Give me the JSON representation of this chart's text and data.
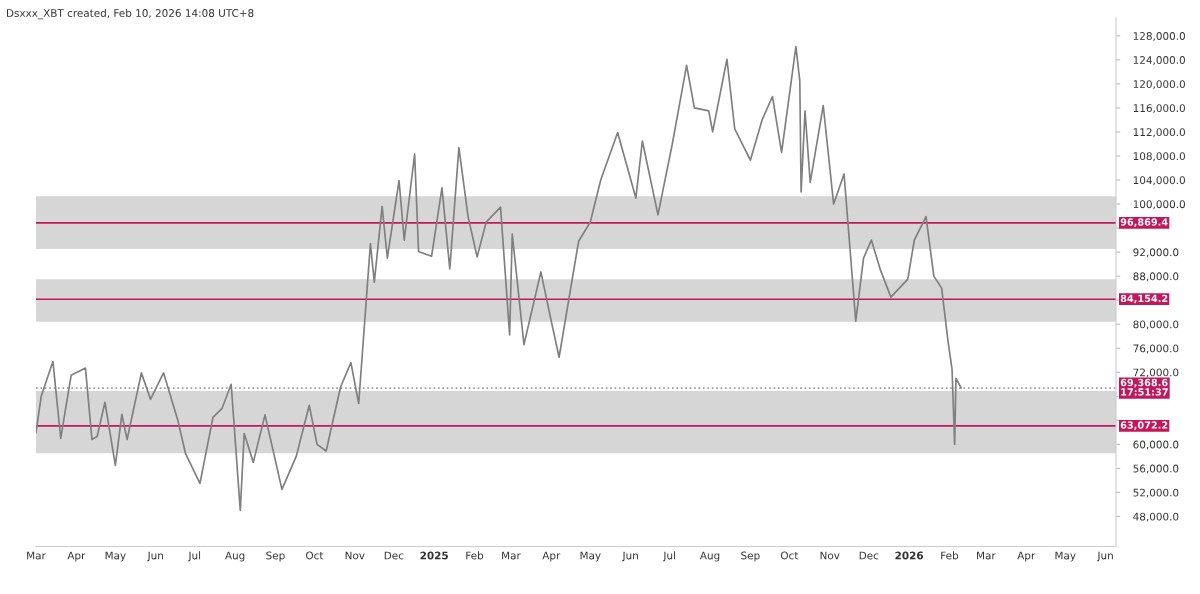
{
  "chart_data": {
    "type": "line",
    "title": "Dsxxx_XBT created, Feb 10, 2026 14:08 UTC+8",
    "series": [
      {
        "color": "#7f7f7f",
        "x": [
          "2024-03-01",
          "2024-03-05",
          "2024-03-14",
          "2024-03-20",
          "2024-03-28",
          "2024-04-08",
          "2024-04-13",
          "2024-04-17",
          "2024-04-23",
          "2024-05-01",
          "2024-05-06",
          "2024-05-10",
          "2024-05-21",
          "2024-05-28",
          "2024-06-07",
          "2024-06-18",
          "2024-06-24",
          "2024-07-05",
          "2024-07-15",
          "2024-07-22",
          "2024-07-29",
          "2024-08-05",
          "2024-08-08",
          "2024-08-15",
          "2024-08-24",
          "2024-09-06",
          "2024-09-17",
          "2024-09-27",
          "2024-10-03",
          "2024-10-10",
          "2024-10-21",
          "2024-10-29",
          "2024-11-04",
          "2024-11-13",
          "2024-11-16",
          "2024-11-22",
          "2024-11-26",
          "2024-12-05",
          "2024-12-09",
          "2024-12-17",
          "2024-12-20",
          "2024-12-30",
          "2025-01-07",
          "2025-01-13",
          "2025-01-20",
          "2025-01-27",
          "2025-02-03",
          "2025-02-10",
          "2025-02-21",
          "2025-02-28",
          "2025-03-02",
          "2025-03-11",
          "2025-03-24",
          "2025-03-31",
          "2025-04-07",
          "2025-04-22",
          "2025-05-01",
          "2025-05-09",
          "2025-05-22",
          "2025-06-05",
          "2025-06-10",
          "2025-06-22",
          "2025-07-03",
          "2025-07-14",
          "2025-07-20",
          "2025-07-31",
          "2025-08-03",
          "2025-08-14",
          "2025-08-20",
          "2025-09-01",
          "2025-09-10",
          "2025-09-18",
          "2025-09-25",
          "2025-10-06",
          "2025-10-09",
          "2025-10-10",
          "2025-10-13",
          "2025-10-17",
          "2025-10-27",
          "2025-11-04",
          "2025-11-12",
          "2025-11-21",
          "2025-11-27",
          "2025-12-03",
          "2025-12-10",
          "2025-12-18",
          "2025-12-31",
          "2026-01-05",
          "2026-01-14",
          "2026-01-20",
          "2026-01-26",
          "2026-01-31",
          "2026-02-03",
          "2026-02-05",
          "2026-02-06",
          "2026-02-10"
        ],
        "values": [
          62000,
          68000,
          73800,
          61000,
          71500,
          72700,
          60800,
          61300,
          67000,
          56500,
          65000,
          60800,
          71900,
          67500,
          71900,
          64000,
          58400,
          53500,
          64500,
          66000,
          70000,
          49000,
          61800,
          57000,
          64900,
          52500,
          58000,
          66500,
          60000,
          58900,
          69500,
          73600,
          66800,
          93400,
          87000,
          99600,
          91000,
          103900,
          94000,
          108300,
          92100,
          91300,
          102700,
          89200,
          109400,
          98000,
          91200,
          97000,
          99500,
          78200,
          95000,
          76600,
          88700,
          81500,
          74500,
          93800,
          97000,
          104000,
          111900,
          101000,
          110500,
          98200,
          110000,
          123100,
          116000,
          115500,
          112000,
          124100,
          112500,
          107300,
          114000,
          117900,
          108600,
          126200,
          120500,
          102000,
          115500,
          103600,
          116400,
          100000,
          105000,
          80500,
          91000,
          94000,
          89000,
          84500,
          87500,
          94000,
          97900,
          88000,
          86000,
          77000,
          72500,
          60000,
          71000,
          69400
        ]
      }
    ],
    "xlim": [
      "2024-03-01",
      "2026-06-09"
    ],
    "xticks": [
      {
        "value": "2024-03-01",
        "label": "Mar"
      },
      {
        "value": "2024-04-01",
        "label": "Apr"
      },
      {
        "value": "2024-05-01",
        "label": "May"
      },
      {
        "value": "2024-06-01",
        "label": "Jun"
      },
      {
        "value": "2024-07-01",
        "label": "Jul"
      },
      {
        "value": "2024-08-01",
        "label": "Aug"
      },
      {
        "value": "2024-09-01",
        "label": "Sep"
      },
      {
        "value": "2024-10-01",
        "label": "Oct"
      },
      {
        "value": "2024-11-01",
        "label": "Nov"
      },
      {
        "value": "2024-12-01",
        "label": "Dec"
      },
      {
        "value": "2025-01-01",
        "label": "2025"
      },
      {
        "value": "2025-02-01",
        "label": "Feb"
      },
      {
        "value": "2025-03-01",
        "label": "Mar"
      },
      {
        "value": "2025-04-01",
        "label": "Apr"
      },
      {
        "value": "2025-05-01",
        "label": "May"
      },
      {
        "value": "2025-06-01",
        "label": "Jun"
      },
      {
        "value": "2025-07-01",
        "label": "Jul"
      },
      {
        "value": "2025-08-01",
        "label": "Aug"
      },
      {
        "value": "2025-09-01",
        "label": "Sep"
      },
      {
        "value": "2025-10-01",
        "label": "Oct"
      },
      {
        "value": "2025-11-01",
        "label": "Nov"
      },
      {
        "value": "2025-12-01",
        "label": "Dec"
      },
      {
        "value": "2026-01-01",
        "label": "2026"
      },
      {
        "value": "2026-02-01",
        "label": "Feb"
      },
      {
        "value": "2026-03-01",
        "label": "Mar"
      },
      {
        "value": "2026-04-01",
        "label": "Apr"
      },
      {
        "value": "2026-05-01",
        "label": "May"
      },
      {
        "value": "2026-06-01",
        "label": "Jun"
      }
    ],
    "ylim": [
      43000,
      131000
    ],
    "yticks": [
      {
        "value": 48000,
        "label": "48,000.0"
      },
      {
        "value": 52000,
        "label": "52,000.0"
      },
      {
        "value": 56000,
        "label": "56,000.0"
      },
      {
        "value": 60000,
        "label": "60,000.0"
      },
      {
        "value": 64000,
        "label": null
      },
      {
        "value": 68000,
        "label": null
      },
      {
        "value": 72000,
        "label": "72,000.0"
      },
      {
        "value": 76000,
        "label": "76,000.0"
      },
      {
        "value": 80000,
        "label": "80,000.0"
      },
      {
        "value": 84000,
        "label": null
      },
      {
        "value": 88000,
        "label": "88,000.0"
      },
      {
        "value": 92000,
        "label": "92,000.0"
      },
      {
        "value": 96000,
        "label": null
      },
      {
        "value": 100000,
        "label": "100,000.0"
      },
      {
        "value": 104000,
        "label": "104,000.0"
      },
      {
        "value": 108000,
        "label": "108,000.0"
      },
      {
        "value": 112000,
        "label": "112,000.0"
      },
      {
        "value": 116000,
        "label": "116,000.0"
      },
      {
        "value": 120000,
        "label": "120,000.0"
      },
      {
        "value": 124000,
        "label": "124,000.0"
      },
      {
        "value": 128000,
        "label": "128,000.0"
      }
    ],
    "bands": [
      {
        "axis": "y",
        "from": 92500,
        "to": 101300,
        "color": "#d6d6d6"
      },
      {
        "axis": "y",
        "from": 80400,
        "to": 87500,
        "color": "#d6d6d6"
      },
      {
        "axis": "y",
        "from": 58500,
        "to": 68900,
        "color": "#d6d6d6"
      }
    ],
    "ref_lines": [
      {
        "axis": "y",
        "value": 96869.4,
        "label": "96,869.4",
        "color": "#c2185b",
        "line_style": "solid"
      },
      {
        "axis": "y",
        "value": 84154.2,
        "label": "84,154.2",
        "color": "#c2185b",
        "line_style": "solid"
      },
      {
        "axis": "y",
        "value": 69368.6,
        "label": "69,368.6\n17:51:37",
        "color": "#9e9e9e",
        "line_style": "dotted"
      },
      {
        "axis": "y",
        "value": 63072.2,
        "label": "63,072.2",
        "color": "#c2185b",
        "line_style": "solid"
      }
    ],
    "grid": false,
    "legend": false,
    "marker": "none",
    "line_style": "solid"
  }
}
